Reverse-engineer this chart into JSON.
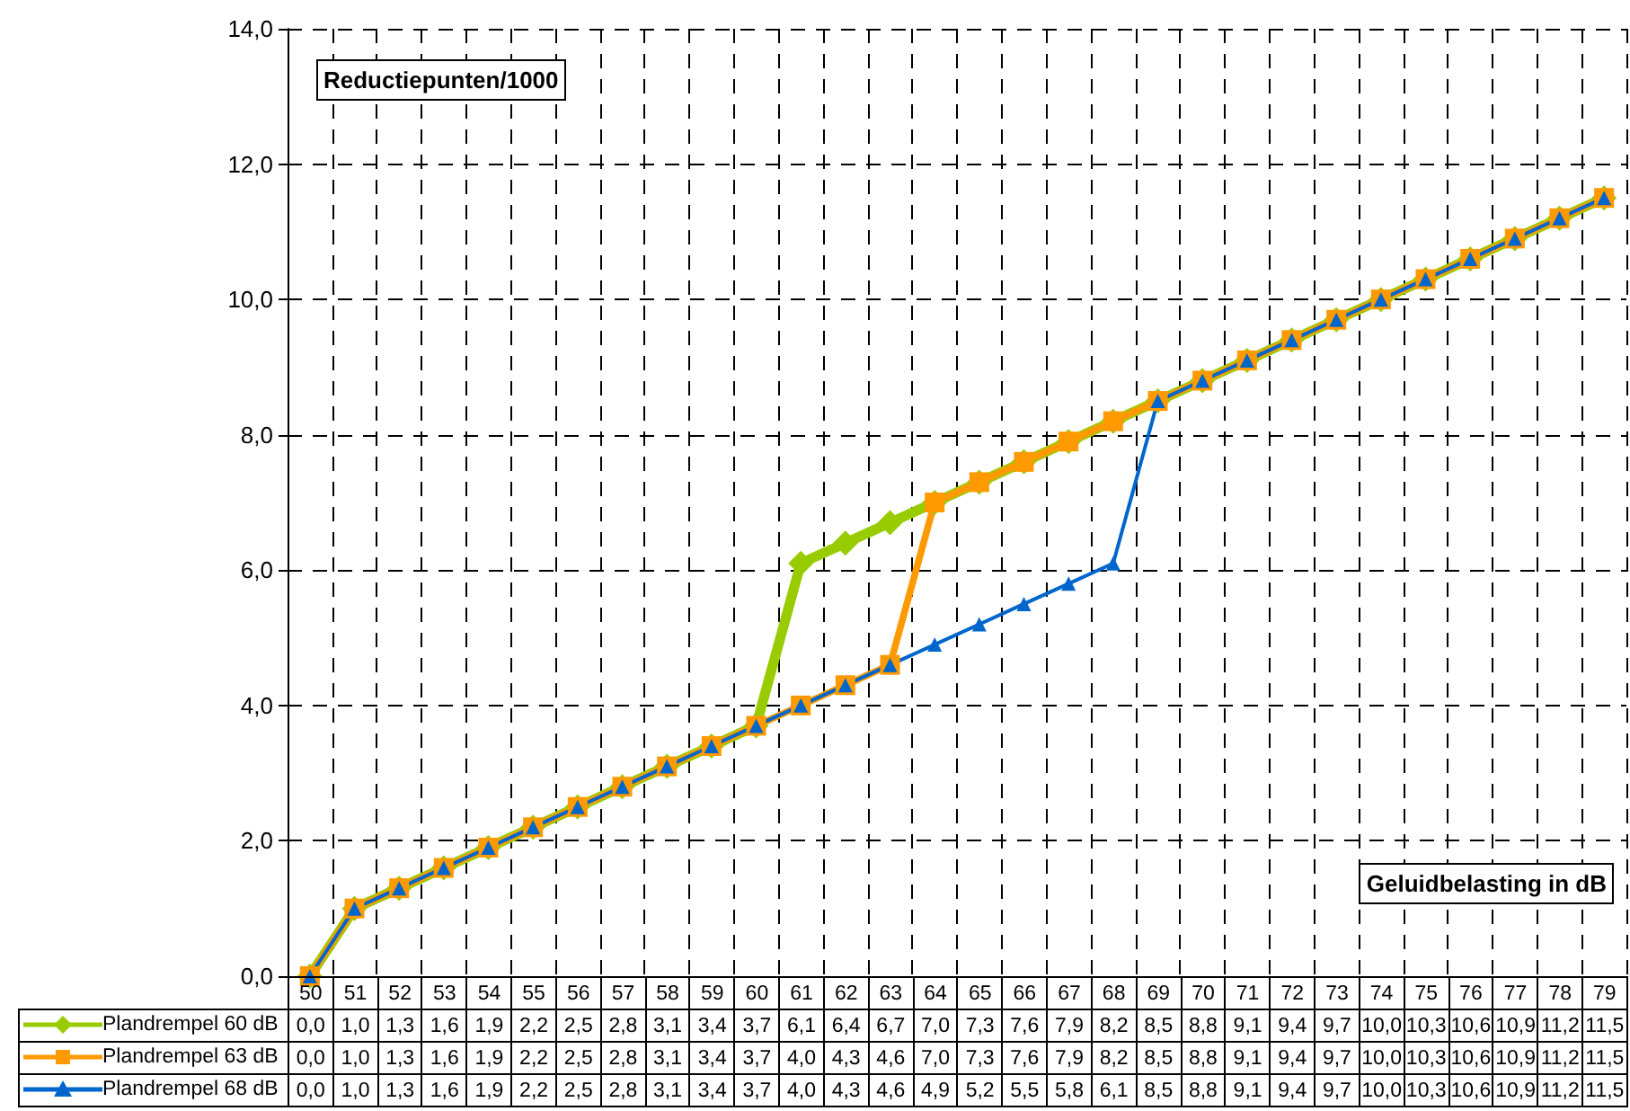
{
  "chart_data": {
    "type": "line",
    "xlabel": "Geluidbelasting in dB",
    "ylabel": "Reductiepunten/1000",
    "categories": [
      "50",
      "51",
      "52",
      "53",
      "54",
      "55",
      "56",
      "57",
      "58",
      "59",
      "60",
      "61",
      "62",
      "63",
      "64",
      "65",
      "66",
      "67",
      "68",
      "69",
      "70",
      "71",
      "72",
      "73",
      "74",
      "75",
      "76",
      "77",
      "78",
      "79"
    ],
    "series": [
      {
        "name": "Plandrempel 60 dB",
        "color": "#99cc00",
        "marker": "diamond",
        "values": [
          0.0,
          1.0,
          1.3,
          1.6,
          1.9,
          2.2,
          2.5,
          2.8,
          3.1,
          3.4,
          3.7,
          6.1,
          6.4,
          6.7,
          7.0,
          7.3,
          7.6,
          7.9,
          8.2,
          8.5,
          8.8,
          9.1,
          9.4,
          9.7,
          10.0,
          10.3,
          10.6,
          10.9,
          11.2,
          11.5
        ],
        "value_labels": [
          "0,0",
          "1,0",
          "1,3",
          "1,6",
          "1,9",
          "2,2",
          "2,5",
          "2,8",
          "3,1",
          "3,4",
          "3,7",
          "6,1",
          "6,4",
          "6,7",
          "7,0",
          "7,3",
          "7,6",
          "7,9",
          "8,2",
          "8,5",
          "8,8",
          "9,1",
          "9,4",
          "9,7",
          "10,0",
          "10,3",
          "10,6",
          "10,9",
          "11,2",
          "11,5"
        ]
      },
      {
        "name": "Plandrempel 63 dB",
        "color": "#ff9900",
        "marker": "square",
        "values": [
          0.0,
          1.0,
          1.3,
          1.6,
          1.9,
          2.2,
          2.5,
          2.8,
          3.1,
          3.4,
          3.7,
          4.0,
          4.3,
          4.6,
          7.0,
          7.3,
          7.6,
          7.9,
          8.2,
          8.5,
          8.8,
          9.1,
          9.4,
          9.7,
          10.0,
          10.3,
          10.6,
          10.9,
          11.2,
          11.5
        ],
        "value_labels": [
          "0,0",
          "1,0",
          "1,3",
          "1,6",
          "1,9",
          "2,2",
          "2,5",
          "2,8",
          "3,1",
          "3,4",
          "3,7",
          "4,0",
          "4,3",
          "4,6",
          "7,0",
          "7,3",
          "7,6",
          "7,9",
          "8,2",
          "8,5",
          "8,8",
          "9,1",
          "9,4",
          "9,7",
          "10,0",
          "10,3",
          "10,6",
          "10,9",
          "11,2",
          "11,5"
        ]
      },
      {
        "name": "Plandrempel 68 dB",
        "color": "#0066cc",
        "marker": "triangle",
        "values": [
          0.0,
          1.0,
          1.3,
          1.6,
          1.9,
          2.2,
          2.5,
          2.8,
          3.1,
          3.4,
          3.7,
          4.0,
          4.3,
          4.6,
          4.9,
          5.2,
          5.5,
          5.8,
          6.1,
          8.5,
          8.8,
          9.1,
          9.4,
          9.7,
          10.0,
          10.3,
          10.6,
          10.9,
          11.2,
          11.5
        ],
        "value_labels": [
          "0,0",
          "1,0",
          "1,3",
          "1,6",
          "1,9",
          "2,2",
          "2,5",
          "2,8",
          "3,1",
          "3,4",
          "3,7",
          "4,0",
          "4,3",
          "4,6",
          "4,9",
          "5,2",
          "5,5",
          "5,8",
          "6,1",
          "8,5",
          "8,8",
          "9,1",
          "9,4",
          "9,7",
          "10,0",
          "10,3",
          "10,6",
          "10,9",
          "11,2",
          "11,5"
        ]
      }
    ],
    "ylim": [
      0,
      14
    ],
    "yticks": [
      {
        "value": 0,
        "label": "0,0"
      },
      {
        "value": 2,
        "label": "2,0"
      },
      {
        "value": 4,
        "label": "4,0"
      },
      {
        "value": 6,
        "label": "6,0"
      },
      {
        "value": 8,
        "label": "8,0"
      },
      {
        "value": 10,
        "label": "10,0"
      },
      {
        "value": 12,
        "label": "12,0"
      },
      {
        "value": 14,
        "label": "14,0"
      }
    ],
    "grid": true,
    "line_style": "solid",
    "legend": "bottom"
  }
}
